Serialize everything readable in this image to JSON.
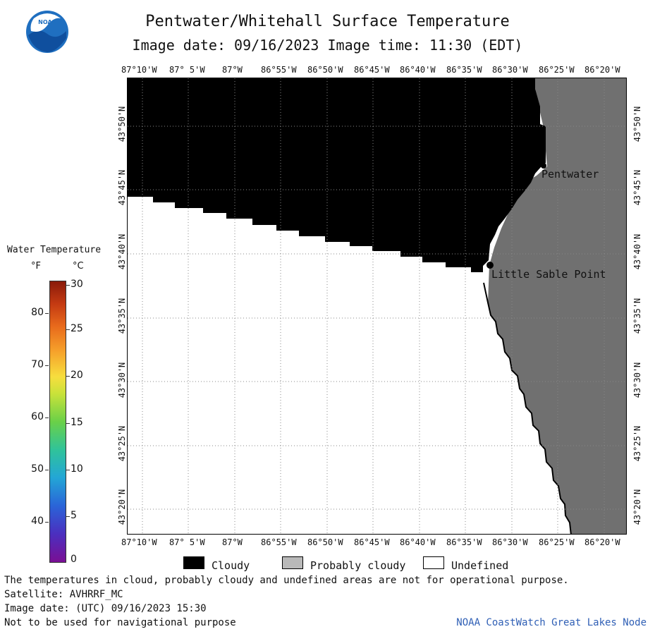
{
  "header": {
    "title": "Pentwater/Whitehall Surface Temperature",
    "subtitle": "Image date: 09/16/2023     Image time: 11:30 (EDT)",
    "logo_text": "NOAA"
  },
  "map": {
    "lon_ticks": [
      "87°10'W",
      "87° 5'W",
      "87°W",
      "86°55'W",
      "86°50'W",
      "86°45'W",
      "86°40'W",
      "86°35'W",
      "86°30'W",
      "86°25'W",
      "86°20'W"
    ],
    "lat_ticks": [
      "43°50'N",
      "43°45'N",
      "43°40'N",
      "43°35'N",
      "43°30'N",
      "43°25'N",
      "43°20'N"
    ],
    "places": [
      {
        "name": "Pentwater"
      },
      {
        "name": "Little Sable Point"
      }
    ],
    "colors": {
      "cloudy": "#000000",
      "land": "#707070",
      "undefined": "#ffffff"
    }
  },
  "legend": {
    "title": "Water Temperature",
    "unit_f": "°F",
    "unit_c": "°C",
    "f_ticks": [
      "80",
      "70",
      "60",
      "50",
      "40"
    ],
    "c_ticks": [
      "30",
      "25",
      "20",
      "15",
      "10",
      "5",
      "0"
    ],
    "categories": [
      {
        "label": "Cloudy",
        "color": "#000000"
      },
      {
        "label": "Probably cloudy",
        "color": "#b9b9b9"
      },
      {
        "label": "Undefined",
        "color": "#ffffff"
      }
    ]
  },
  "footer": {
    "line1": "The temperatures in cloud, probably cloudy and undefined areas are not for operational purpose.",
    "line2": "Satellite: AVHRRF_MC",
    "line3": "Image date: (UTC) 09/16/2023  15:30",
    "line4": "Not to be used for navigational purpose",
    "credit": "NOAA CoastWatch Great Lakes Node"
  }
}
